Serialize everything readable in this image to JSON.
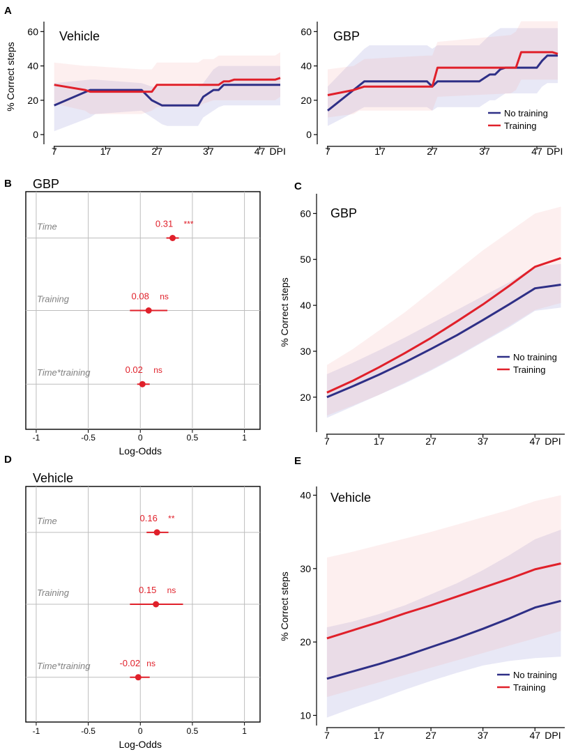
{
  "colors": {
    "no_training": "#2e2f86",
    "training": "#e0202a",
    "band_blue": "#6f73c8",
    "band_red": "#f4a5a5",
    "grid": "#bdbdbd",
    "axis": "#000000",
    "label_gray": "#808080",
    "estimate": "#e0202a"
  },
  "chart_data": [
    {
      "id": "A-vehicle",
      "panel_letter": "A",
      "type": "line",
      "title": "Vehicle",
      "ylabel": "% Correct steps",
      "xlabel": "DPI",
      "xlim": [
        5,
        51
      ],
      "ylim": [
        -4,
        65
      ],
      "xticks": [
        7,
        17,
        27,
        37,
        47
      ],
      "yticks": [
        0,
        20,
        40,
        60
      ],
      "series": [
        {
          "name": "No training",
          "color_key": "no_training",
          "x": [
            7,
            14,
            15,
            24,
            26,
            28,
            29,
            30,
            35,
            36,
            38,
            39,
            40,
            41,
            42,
            51
          ],
          "y": [
            17,
            26,
            26,
            26,
            20,
            17,
            17,
            17,
            17,
            22,
            26,
            26,
            29,
            29,
            29,
            29
          ],
          "band_upper": [
            30,
            32,
            32,
            30,
            28,
            28,
            28,
            28,
            28,
            30,
            38,
            40,
            40,
            40,
            40,
            40
          ],
          "band_lower": [
            2,
            10,
            12,
            14,
            10,
            6,
            5,
            5,
            5,
            10,
            14,
            16,
            17,
            17,
            17,
            17
          ]
        },
        {
          "name": "Training",
          "color_key": "training",
          "x": [
            7,
            13,
            14,
            24,
            26,
            27,
            28,
            34,
            35,
            36,
            38,
            39,
            40,
            41,
            42,
            50,
            51
          ],
          "y": [
            29,
            26,
            25,
            25,
            25,
            29,
            29,
            29,
            29,
            29,
            29,
            29,
            31,
            31,
            32,
            32,
            33
          ],
          "band_upper": [
            42,
            40,
            40,
            38,
            38,
            42,
            42,
            42,
            42,
            44,
            44,
            46,
            46,
            46,
            46,
            46,
            48
          ],
          "band_lower": [
            18,
            14,
            12,
            12,
            14,
            16,
            16,
            16,
            16,
            18,
            20,
            20,
            20,
            20,
            20,
            20,
            22
          ]
        }
      ],
      "legend": null
    },
    {
      "id": "A-gbp",
      "panel_letter": "",
      "type": "line",
      "title": "GBP",
      "ylabel": "",
      "xlabel": "DPI",
      "xlim": [
        5,
        51
      ],
      "ylim": [
        -4,
        65
      ],
      "xticks": [
        7,
        17,
        27,
        37,
        47
      ],
      "yticks": [
        0,
        20,
        40,
        60
      ],
      "series": [
        {
          "name": "No training",
          "color_key": "no_training",
          "x": [
            7,
            14,
            15,
            26,
            27,
            28,
            29,
            36,
            37,
            38,
            39,
            40,
            41,
            47,
            48,
            49,
            51
          ],
          "y": [
            14,
            31,
            31,
            31,
            28,
            31,
            31,
            31,
            33,
            35,
            35,
            38,
            39,
            39,
            43,
            46,
            46
          ],
          "band_upper": [
            28,
            50,
            52,
            52,
            50,
            52,
            52,
            52,
            55,
            58,
            60,
            62,
            62,
            62,
            62,
            62,
            62
          ],
          "band_lower": [
            5,
            16,
            16,
            16,
            14,
            16,
            16,
            16,
            18,
            20,
            20,
            22,
            24,
            24,
            28,
            30,
            30
          ]
        },
        {
          "name": "Training",
          "color_key": "training",
          "x": [
            7,
            12,
            13,
            14,
            26,
            27,
            28,
            42,
            43,
            44,
            50,
            51
          ],
          "y": [
            23,
            26,
            27,
            28,
            28,
            28,
            39,
            39,
            39,
            48,
            48,
            47
          ],
          "band_upper": [
            38,
            40,
            42,
            44,
            46,
            46,
            54,
            58,
            60,
            66,
            66,
            66
          ],
          "band_lower": [
            10,
            12,
            14,
            14,
            14,
            14,
            22,
            24,
            26,
            32,
            32,
            32
          ]
        }
      ],
      "legend": {
        "position": "bottom-right",
        "entries": [
          "No training",
          "Training"
        ]
      }
    },
    {
      "id": "B",
      "panel_letter": "B",
      "type": "forest",
      "title": "GBP",
      "xlabel": "Log-Odds",
      "xlim": [
        -1.1,
        1.15
      ],
      "xticks": [
        -1,
        -0.5,
        0,
        0.5,
        1
      ],
      "tick_labels": [
        "-1",
        "-0.5",
        "0",
        "0.5",
        "1"
      ],
      "terms": [
        {
          "name": "Time",
          "estimate": 0.31,
          "lower": 0.25,
          "upper": 0.37,
          "label": "0.31",
          "sig": "***"
        },
        {
          "name": "Training",
          "estimate": 0.08,
          "lower": -0.1,
          "upper": 0.26,
          "label": "0.08",
          "sig": "ns"
        },
        {
          "name": "Time*training",
          "estimate": 0.02,
          "lower": -0.03,
          "upper": 0.09,
          "label": "0.02",
          "sig": "ns"
        }
      ]
    },
    {
      "id": "C",
      "panel_letter": "C",
      "type": "line",
      "title": "GBP",
      "ylabel": "% Correct steps",
      "xlabel": "DPI",
      "xlim": [
        5,
        53
      ],
      "ylim": [
        13,
        64
      ],
      "xticks": [
        7,
        17,
        27,
        37,
        47
      ],
      "yticks": [
        20,
        30,
        40,
        50,
        60
      ],
      "series": [
        {
          "name": "No training",
          "color_key": "no_training",
          "x": [
            7,
            12,
            17,
            22,
            27,
            32,
            37,
            42,
            47,
            52
          ],
          "y": [
            20,
            22.4,
            24.9,
            27.6,
            30.5,
            33.5,
            36.8,
            40.2,
            43.7,
            44.5
          ],
          "band_upper": [
            25,
            27.5,
            30.2,
            33,
            36,
            39,
            42,
            45,
            48.5,
            49
          ],
          "band_lower": [
            15.5,
            18,
            20.5,
            23,
            25.8,
            28.8,
            32,
            35.2,
            38.8,
            39.5
          ]
        },
        {
          "name": "Training",
          "color_key": "training",
          "x": [
            7,
            12,
            17,
            22,
            27,
            32,
            37,
            42,
            47,
            52
          ],
          "y": [
            21,
            23.6,
            26.5,
            29.6,
            32.9,
            36.5,
            40.2,
            44.2,
            48.4,
            50.3
          ],
          "band_upper": [
            27,
            30.5,
            34.5,
            38.5,
            43,
            47.5,
            52,
            56,
            60,
            61.5
          ],
          "band_lower": [
            16,
            18.2,
            20.5,
            23.2,
            26,
            29,
            32.2,
            35.5,
            39,
            40.5
          ]
        }
      ],
      "legend": {
        "position": "right",
        "entries": [
          "No training",
          "Training"
        ]
      }
    },
    {
      "id": "D",
      "panel_letter": "D",
      "type": "forest",
      "title": "Vehicle",
      "xlabel": "Log-Odds",
      "xlim": [
        -1.1,
        1.15
      ],
      "xticks": [
        -1,
        -0.5,
        0,
        0.5,
        1
      ],
      "tick_labels": [
        "-1",
        "-0.5",
        "0",
        "0.5",
        "1"
      ],
      "terms": [
        {
          "name": "Time",
          "estimate": 0.16,
          "lower": 0.06,
          "upper": 0.27,
          "label": "0.16",
          "sig": "**"
        },
        {
          "name": "Training",
          "estimate": 0.15,
          "lower": -0.1,
          "upper": 0.41,
          "label": "0.15",
          "sig": "ns"
        },
        {
          "name": "Time*training",
          "estimate": -0.02,
          "lower": -0.1,
          "upper": 0.09,
          "label": "-0.02",
          "sig": "ns"
        }
      ]
    },
    {
      "id": "E",
      "panel_letter": "E",
      "type": "line",
      "title": "Vehicle",
      "ylabel": "% Correct steps",
      "xlabel": "DPI",
      "xlim": [
        5,
        53
      ],
      "ylim": [
        9,
        41
      ],
      "xticks": [
        7,
        17,
        27,
        37,
        47
      ],
      "yticks": [
        10,
        20,
        30,
        40
      ],
      "series": [
        {
          "name": "No training",
          "color_key": "no_training",
          "x": [
            7,
            12,
            17,
            22,
            27,
            32,
            37,
            42,
            47,
            52
          ],
          "y": [
            15,
            16,
            17,
            18.1,
            19.3,
            20.5,
            21.8,
            23.2,
            24.7,
            25.6
          ],
          "band_upper": [
            22,
            22.8,
            23.8,
            25,
            26.5,
            28,
            29.8,
            31.8,
            34,
            35.3
          ],
          "band_lower": [
            9.7,
            11,
            12.2,
            13.5,
            14.7,
            15.8,
            16.8,
            17.4,
            17.8,
            18
          ]
        },
        {
          "name": "Training",
          "color_key": "training",
          "x": [
            7,
            12,
            17,
            22,
            27,
            32,
            37,
            42,
            47,
            52
          ],
          "y": [
            20.5,
            21.6,
            22.7,
            23.9,
            25,
            26.2,
            27.4,
            28.6,
            29.9,
            30.7
          ],
          "band_upper": [
            31.5,
            32.3,
            33.2,
            34.1,
            35,
            36,
            37,
            38,
            39.2,
            40
          ],
          "band_lower": [
            12.5,
            13.5,
            14.5,
            15.5,
            16.5,
            17.5,
            18.5,
            19.5,
            20.5,
            21.5
          ]
        }
      ],
      "legend": {
        "position": "bottom-right",
        "entries": [
          "No training",
          "Training"
        ]
      }
    }
  ]
}
